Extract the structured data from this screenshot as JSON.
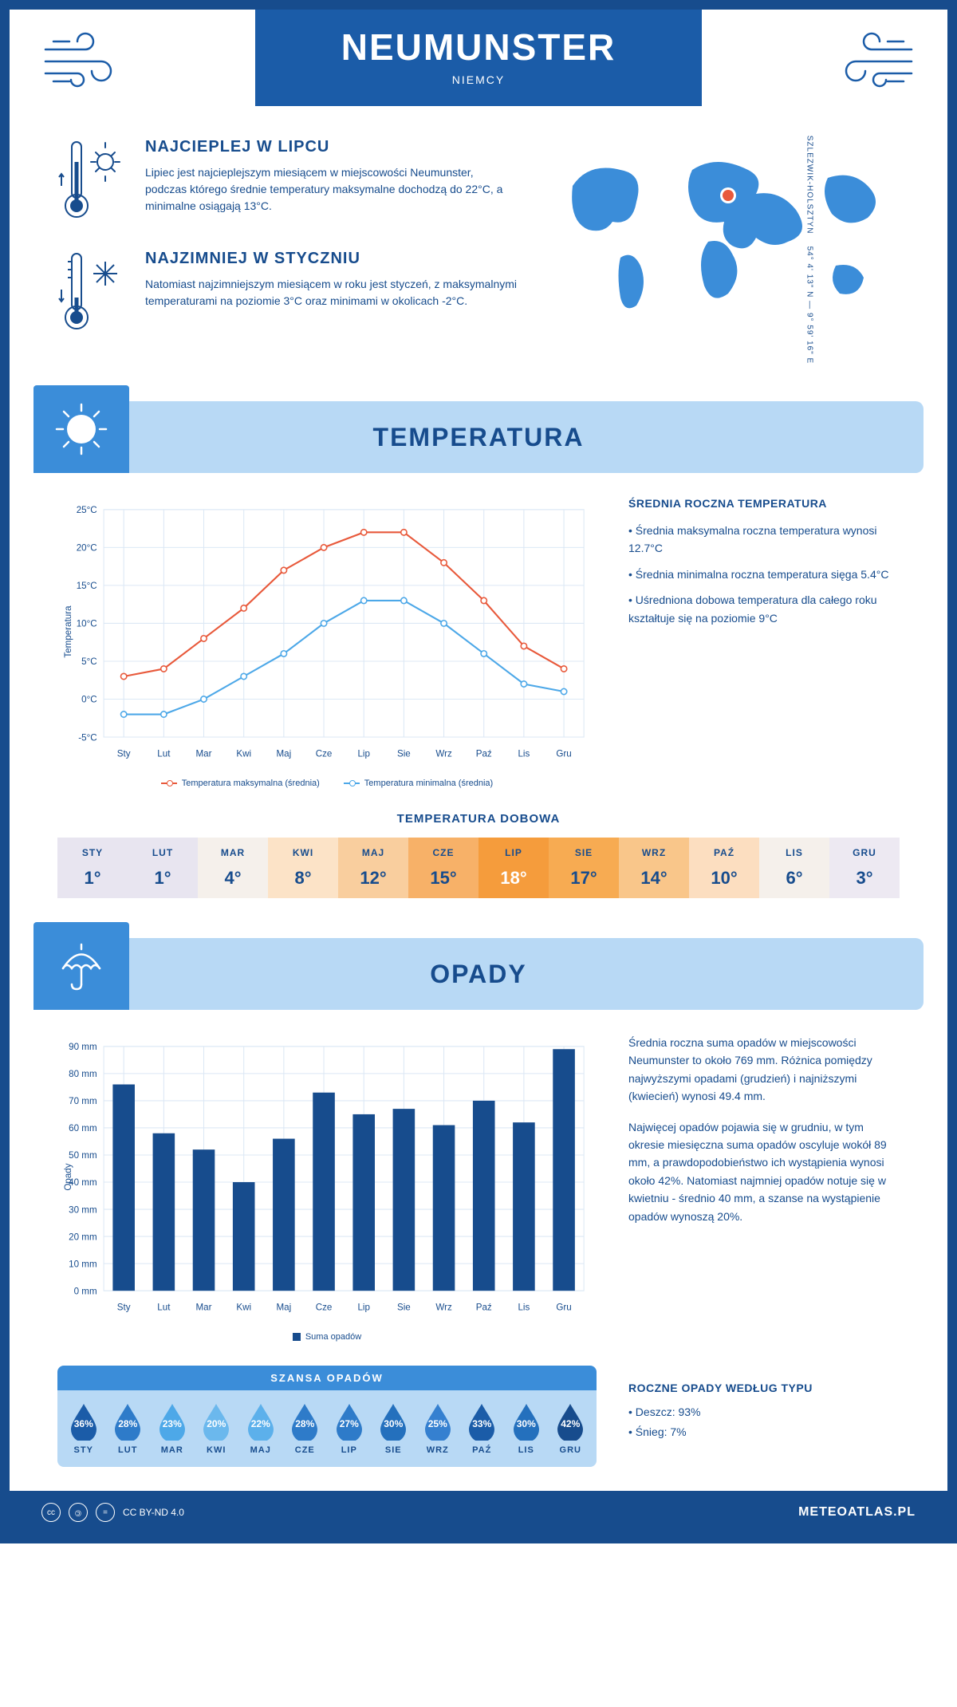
{
  "header": {
    "city": "NEUMUNSTER",
    "country": "NIEMCY"
  },
  "coords": {
    "lat": "54° 4' 13\" N",
    "lon": "9° 59' 16\" E",
    "region": "SZLEZWIK-HOLSZTYN"
  },
  "intro": {
    "hot": {
      "title": "NAJCIEPLEJ W LIPCU",
      "text": "Lipiec jest najcieplejszym miesiącem w miejscowości Neumunster, podczas którego średnie temperatury maksymalne dochodzą do 22°C, a minimalne osiągają 13°C."
    },
    "cold": {
      "title": "NAJZIMNIEJ W STYCZNIU",
      "text": "Natomiast najzimniejszym miesiącem w roku jest styczeń, z maksymalnymi temperaturami na poziomie 3°C oraz minimami w okolicach -2°C."
    }
  },
  "sections": {
    "temperature": "TEMPERATURA",
    "precipitation": "OPADY"
  },
  "months": [
    "Sty",
    "Lut",
    "Mar",
    "Kwi",
    "Maj",
    "Cze",
    "Lip",
    "Sie",
    "Wrz",
    "Paź",
    "Lis",
    "Gru"
  ],
  "months_upper": [
    "STY",
    "LUT",
    "MAR",
    "KWI",
    "MAJ",
    "CZE",
    "LIP",
    "SIE",
    "WRZ",
    "PAŹ",
    "LIS",
    "GRU"
  ],
  "temp_chart": {
    "type": "line",
    "y_label": "Temperatura",
    "ylim": [
      -5,
      25
    ],
    "ytick_step": 5,
    "ytick_labels": [
      "-5°C",
      "0°C",
      "5°C",
      "10°C",
      "15°C",
      "20°C",
      "25°C"
    ],
    "max_series": [
      3,
      4,
      8,
      12,
      17,
      20,
      22,
      22,
      18,
      13,
      7,
      4
    ],
    "min_series": [
      -2,
      -2,
      0,
      3,
      6,
      10,
      13,
      13,
      10,
      6,
      2,
      1
    ],
    "max_color": "#e8593b",
    "min_color": "#4da8e8",
    "grid_color": "#dce8f5",
    "bg_color": "#ffffff",
    "line_width": 2,
    "marker": "circle",
    "legend_max": "Temperatura maksymalna (średnia)",
    "legend_min": "Temperatura minimalna (średnia)"
  },
  "temp_text": {
    "title": "ŚREDNIA ROCZNA TEMPERATURA",
    "bullets": [
      "Średnia maksymalna roczna temperatura wynosi 12.7°C",
      "Średnia minimalna roczna temperatura sięga 5.4°C",
      "Uśredniona dobowa temperatura dla całego roku kształtuje się na poziomie 9°C"
    ]
  },
  "daily_temp": {
    "title": "TEMPERATURA DOBOWA",
    "values": [
      "1°",
      "1°",
      "4°",
      "8°",
      "12°",
      "15°",
      "18°",
      "17°",
      "14°",
      "10°",
      "6°",
      "3°"
    ],
    "bg_colors": [
      "#e8e5f0",
      "#e8e5f0",
      "#f5f0eb",
      "#fce3c7",
      "#f9ce9e",
      "#f7b168",
      "#f59c3c",
      "#f7ab52",
      "#f9c68a",
      "#fcdec0",
      "#f5f0eb",
      "#ede9f2"
    ],
    "text_colors": [
      "#174c8d",
      "#174c8d",
      "#174c8d",
      "#174c8d",
      "#174c8d",
      "#174c8d",
      "#ffffff",
      "#174c8d",
      "#174c8d",
      "#174c8d",
      "#174c8d",
      "#174c8d"
    ]
  },
  "precip_chart": {
    "type": "bar",
    "y_label": "Opady",
    "ylim": [
      0,
      90
    ],
    "ytick_step": 10,
    "ytick_labels": [
      "0 mm",
      "10 mm",
      "20 mm",
      "30 mm",
      "40 mm",
      "50 mm",
      "60 mm",
      "70 mm",
      "80 mm",
      "90 mm"
    ],
    "values": [
      76,
      58,
      52,
      40,
      56,
      73,
      65,
      67,
      61,
      70,
      62,
      89
    ],
    "bar_color": "#174c8d",
    "grid_color": "#dce8f5",
    "bar_width": 0.55,
    "legend": "Suma opadów"
  },
  "precip_text": {
    "p1": "Średnia roczna suma opadów w miejscowości Neumunster to około 769 mm. Różnica pomiędzy najwyższymi opadami (grudzień) i najniższymi (kwiecień) wynosi 49.4 mm.",
    "p2": "Najwięcej opadów pojawia się w grudniu, w tym okresie miesięczna suma opadów oscyluje wokół 89 mm, a prawdopodobieństwo ich wystąpienia wynosi około 42%. Natomiast najmniej opadów notuje się w kwietniu - średnio 40 mm, a szanse na wystąpienie opadów wynoszą 20%."
  },
  "precip_chance": {
    "title": "SZANSA OPADÓW",
    "values": [
      "36%",
      "28%",
      "23%",
      "20%",
      "22%",
      "28%",
      "27%",
      "30%",
      "25%",
      "33%",
      "30%",
      "42%"
    ],
    "colors": [
      "#1b5ca8",
      "#2e7bc9",
      "#4da8e8",
      "#6bb8ed",
      "#5cb0eb",
      "#2e7bc9",
      "#2e7bc9",
      "#2470bd",
      "#3580d0",
      "#1b5ca8",
      "#2470bd",
      "#174c8d"
    ]
  },
  "precip_type": {
    "title": "ROCZNE OPADY WEDŁUG TYPU",
    "items": [
      "Deszcz: 93%",
      "Śnieg: 7%"
    ]
  },
  "footer": {
    "license": "CC BY-ND 4.0",
    "site": "METEOATLAS.PL"
  },
  "colors": {
    "brand": "#174c8d",
    "brand_mid": "#1b5ca8",
    "accent_light": "#b8d9f5",
    "accent_mid": "#3b8dd9",
    "map_fill": "#3b8dd9",
    "marker": "#e8593b"
  }
}
